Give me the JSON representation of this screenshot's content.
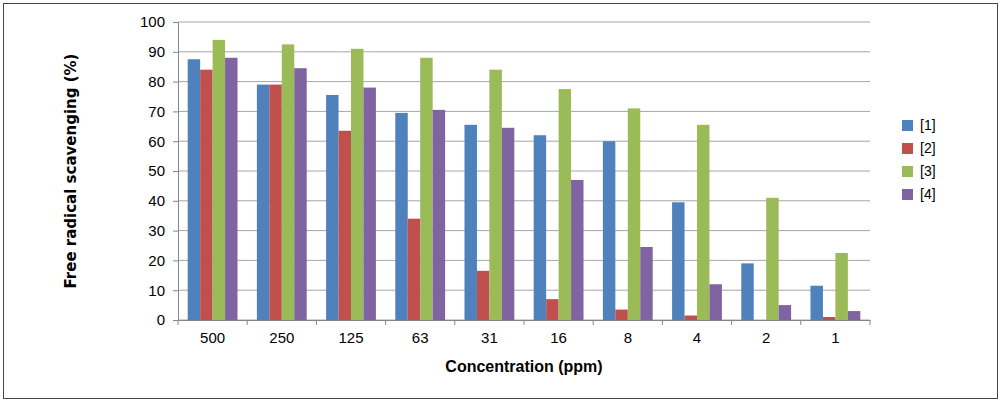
{
  "chart_data": {
    "type": "bar",
    "x_label": "Concentration  (ppm)",
    "y_label": "Free radical scavenging (%)",
    "categories": [
      "500",
      "250",
      "125",
      "63",
      "31",
      "16",
      "8",
      "4",
      "2",
      "1"
    ],
    "series": [
      {
        "name": "[1]",
        "color": "#4f81bd",
        "values": [
          87.5,
          79,
          75.5,
          69.5,
          65.5,
          62,
          60,
          39.5,
          19,
          11.5
        ]
      },
      {
        "name": "[2]",
        "color": "#c0504d",
        "values": [
          84,
          79,
          63.5,
          34,
          16.5,
          7,
          3.5,
          1.5,
          0,
          1
        ]
      },
      {
        "name": "[3]",
        "color": "#9bbb59",
        "values": [
          94,
          92.5,
          91,
          88,
          84,
          77.5,
          71,
          65.5,
          41,
          22.5
        ]
      },
      {
        "name": "[4]",
        "color": "#8064a2",
        "values": [
          88,
          84.5,
          78,
          70.5,
          64.5,
          47,
          24.5,
          12,
          5,
          3
        ]
      }
    ],
    "ylim": [
      0,
      100
    ],
    "yticks": [
      0,
      10,
      20,
      30,
      40,
      50,
      60,
      70,
      80,
      90,
      100
    ],
    "grid": true,
    "legend": "right"
  }
}
